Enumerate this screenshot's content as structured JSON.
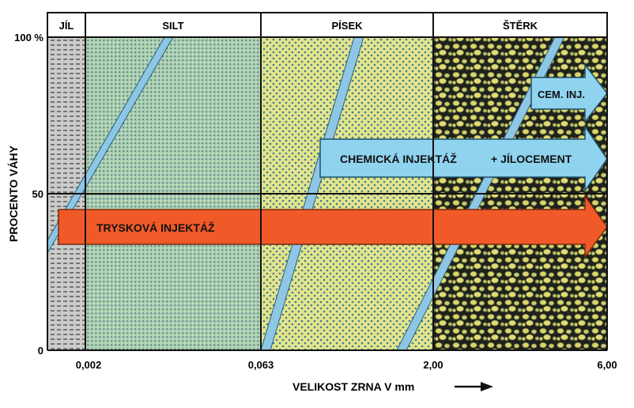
{
  "zones": [
    {
      "label": "JÍL",
      "color": "#c9ccc8"
    },
    {
      "label": "SILT",
      "color": "#a6ccb8"
    },
    {
      "label": "PÍSEK",
      "color": "#e4e48a"
    },
    {
      "label": "ŠTĚRK",
      "color": "#2a2a22"
    }
  ],
  "y_axis": {
    "title": "PROCENTO VÁHY",
    "ticks": [
      "100 %",
      "50",
      "0"
    ]
  },
  "x_axis": {
    "title": "VELIKOST ZRNA V mm",
    "ticks": [
      "0,002",
      "0,063",
      "2,00",
      "6,00"
    ]
  },
  "arrows": {
    "jet": {
      "label": "TRYSKOVÁ INJEKTÁŽ",
      "color": "#f05a28"
    },
    "chemical": {
      "label": "CHEMICKÁ INJEKTÁŽ",
      "label2": "+ JÍLOCEMENT",
      "color": "#8fd3ef"
    },
    "cement": {
      "label": "CEM. INJ.",
      "color": "#8fd3ef"
    }
  },
  "colors": {
    "band": "#8ec6e4",
    "grid": "#111111"
  }
}
